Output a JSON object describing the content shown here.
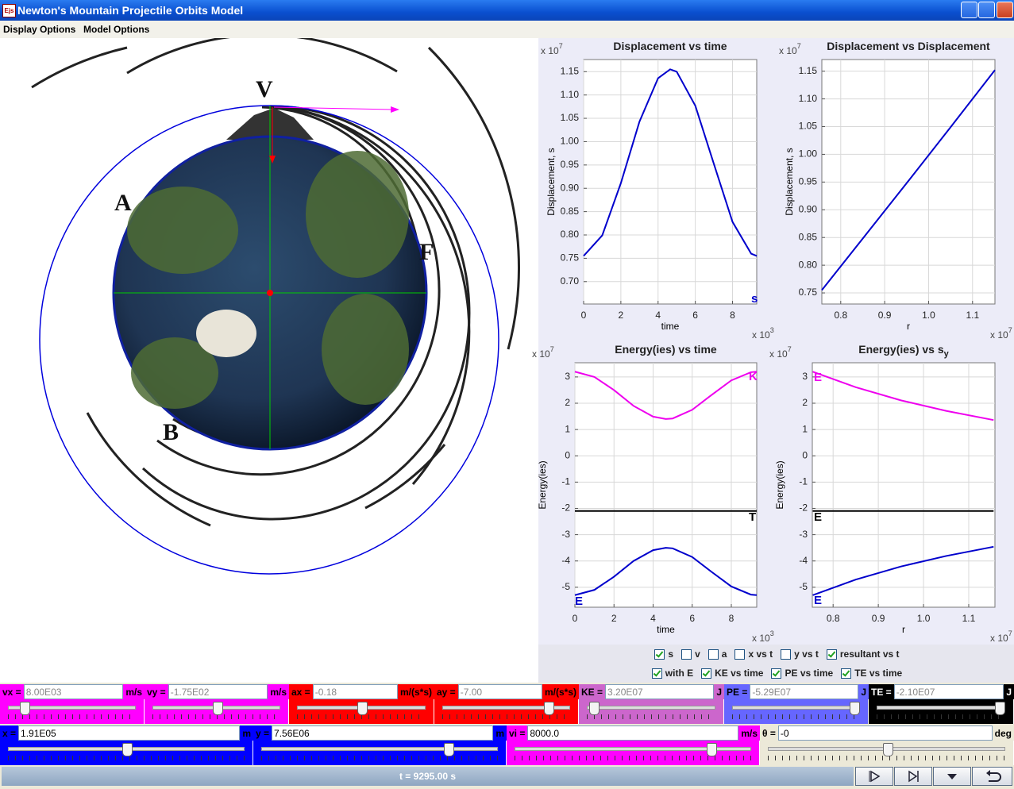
{
  "window": {
    "icon": "Ejs",
    "title": "Newton's Mountain Projectile Orbits Model"
  },
  "menu": [
    "Display Options",
    "Model Options"
  ],
  "diagram": {
    "labels": [
      "V",
      "A",
      "F",
      "B"
    ]
  },
  "charts": [
    {
      "type": "line",
      "title": "Displacement vs time",
      "x_label": "time",
      "y_label": "Displacement, s",
      "y_multiplier": {
        "base": "x 10",
        "exponent": "7"
      },
      "x_multiplier": {
        "base": "x 10",
        "exponent": "3"
      },
      "xlim": [
        0,
        9.3
      ],
      "ylim": [
        0.652,
        1.176
      ],
      "grid": true,
      "xticks": [
        0,
        2,
        4,
        6,
        8
      ],
      "yticks": [
        {
          "value": 0.7,
          "label": "0.70"
        },
        0.75,
        {
          "value": 0.8,
          "label": "0.80"
        },
        0.85,
        {
          "value": 0.9,
          "label": "0.90"
        },
        0.95,
        {
          "value": 1,
          "label": "1.00"
        },
        1.05,
        {
          "value": 1.1,
          "label": "1.10"
        },
        1.15
      ],
      "x": [
        0,
        1,
        2,
        3,
        4,
        4.65,
        5,
        6,
        7,
        8,
        9,
        9.3
      ],
      "series": [
        {
          "name": "s",
          "color": "#0000cc",
          "values": [
            0.755,
            0.799,
            0.911,
            1.043,
            1.136,
            1.155,
            1.15,
            1.077,
            0.952,
            0.828,
            0.76,
            0.755
          ]
        }
      ]
    },
    {
      "type": "line",
      "title": "Displacement vs Displacement",
      "x_label": "r",
      "y_label": "Displacement, s",
      "y_multiplier": {
        "base": "x 10",
        "exponent": "7"
      },
      "x_multiplier": {
        "base": "x 10",
        "exponent": "7"
      },
      "xlim": [
        0.757,
        1.151
      ],
      "ylim": [
        0.73,
        1.171
      ],
      "grid": true,
      "xticks": [
        0.8,
        0.9,
        {
          "value": 1,
          "label": "1.0"
        },
        1.1
      ],
      "yticks": [
        0.75,
        {
          "value": 0.8,
          "label": "0.80"
        },
        0.85,
        {
          "value": 0.9,
          "label": "0.90"
        },
        0.95,
        {
          "value": 1,
          "label": "1.00"
        },
        1.05,
        {
          "value": 1.1,
          "label": "1.10"
        },
        1.15
      ],
      "x": [
        0.757,
        0.85,
        0.95,
        1.05,
        1.151
      ],
      "series": [
        {
          "color": "#0000cc",
          "values": [
            0.755,
            0.848,
            0.948,
            1.049,
            1.152
          ]
        }
      ]
    },
    {
      "type": "line",
      "title": "Energy(ies) vs time",
      "x_label": "time",
      "y_label": "Energy(ies)",
      "y_multiplier": {
        "base": "x 10",
        "exponent": "7"
      },
      "x_multiplier": {
        "base": "x 10",
        "exponent": "3"
      },
      "xlim": [
        0,
        9.3
      ],
      "ylim": [
        -5.76,
        3.54
      ],
      "grid": true,
      "xticks": [
        0,
        2,
        4,
        6,
        8
      ],
      "yticks": [
        -5,
        -4,
        -3,
        -2,
        -1,
        0,
        1,
        2,
        3
      ],
      "x": [
        0,
        1,
        2,
        3,
        4,
        4.65,
        5,
        6,
        7,
        8,
        9,
        9.3
      ],
      "series": [
        {
          "name": "K",
          "color": "#ee00ee",
          "values": [
            3.2,
            3.0,
            2.5,
            1.9,
            1.49,
            1.4,
            1.42,
            1.75,
            2.32,
            2.87,
            3.18,
            3.2
          ]
        },
        {
          "name": "T",
          "color": "#000000",
          "values": [
            -2.1,
            -2.1,
            -2.1,
            -2.1,
            -2.1,
            -2.1,
            -2.1,
            -2.1,
            -2.1,
            -2.1,
            -2.1,
            -2.1
          ]
        },
        {
          "name": "E",
          "color": "#0000cc",
          "values": [
            -5.3,
            -5.1,
            -4.6,
            -4.0,
            -3.59,
            -3.5,
            -3.52,
            -3.85,
            -4.42,
            -4.97,
            -5.28,
            -5.3
          ]
        }
      ]
    },
    {
      "type": "line",
      "title": "Energy(ies) vs s",
      "title_subscript": "y",
      "x_label": "r",
      "y_label": "Energy(ies)",
      "y_multiplier": {
        "base": "x 10",
        "exponent": "7"
      },
      "x_multiplier": {
        "base": "x 10",
        "exponent": "7"
      },
      "xlim": [
        0.754,
        1.158
      ],
      "ylim": [
        -5.76,
        3.54
      ],
      "grid": true,
      "xticks": [
        0.8,
        0.9,
        {
          "value": 1,
          "label": "1.0"
        },
        1.1
      ],
      "yticks": [
        -5,
        -4,
        -3,
        -2,
        -1,
        0,
        1,
        2,
        3
      ],
      "x": [
        0.755,
        0.85,
        0.95,
        1.05,
        1.155
      ],
      "series": [
        {
          "name": "E",
          "color": "#ee00ee",
          "values": [
            3.2,
            2.61,
            2.11,
            1.71,
            1.36
          ]
        },
        {
          "name": "E",
          "color": "#000000",
          "values": [
            -2.1,
            -2.1,
            -2.1,
            -2.1,
            -2.1
          ]
        },
        {
          "name": "E",
          "color": "#0000cc",
          "values": [
            -5.3,
            -4.71,
            -4.21,
            -3.81,
            -3.46
          ]
        }
      ]
    }
  ],
  "options": [
    [
      {
        "label": "s",
        "checked": true
      },
      {
        "label": "v",
        "checked": false
      },
      {
        "label": "a",
        "checked": false
      },
      {
        "label": "x vs t",
        "checked": false
      },
      {
        "label": "y vs t",
        "checked": false
      },
      {
        "label": "resultant vs t",
        "checked": true
      }
    ],
    [
      {
        "label": "with E",
        "checked": true
      },
      {
        "label": "KE vs time",
        "checked": true
      },
      {
        "label": "PE vs time",
        "checked": true
      },
      {
        "label": "TE vs time",
        "checked": true
      }
    ]
  ],
  "readouts": [
    {
      "label": "vx =",
      "value": "8.00E03",
      "unit": "m/s",
      "color": "#ff00ff"
    },
    {
      "label": "vy =",
      "value": "-1.75E02",
      "unit": "m/s",
      "color": "#ff00ff"
    },
    {
      "label": "ax =",
      "value": "-0.18",
      "unit": "m/(s*s)",
      "color": "#ff0000"
    },
    {
      "label": "ay =",
      "value": "-7.00",
      "unit": "m/(s*s)",
      "color": "#ff0000"
    },
    {
      "label": "KE =",
      "value": "3.20E07",
      "unit": "J",
      "color": "#cc66cc"
    },
    {
      "label": "PE =",
      "value": "-5.29E07",
      "unit": "J",
      "color": "#6666ff"
    },
    {
      "label": "TE =",
      "value": "-2.10E07",
      "unit": "J",
      "color": "#000000"
    }
  ],
  "inputs": [
    {
      "label": "x =",
      "value": "1.91E05",
      "unit": "m",
      "color": "#0000ff"
    },
    {
      "label": "y =",
      "value": "7.56E06",
      "unit": "m",
      "color": "#0000ff"
    },
    {
      "label": "vi =",
      "value": "8000.0",
      "unit": "m/s",
      "color": "#ff00ff"
    },
    {
      "label": "θ =",
      "value": "-0",
      "unit": "deg",
      "color": "#ece9d8"
    }
  ],
  "time": "t = 9295.00 s"
}
